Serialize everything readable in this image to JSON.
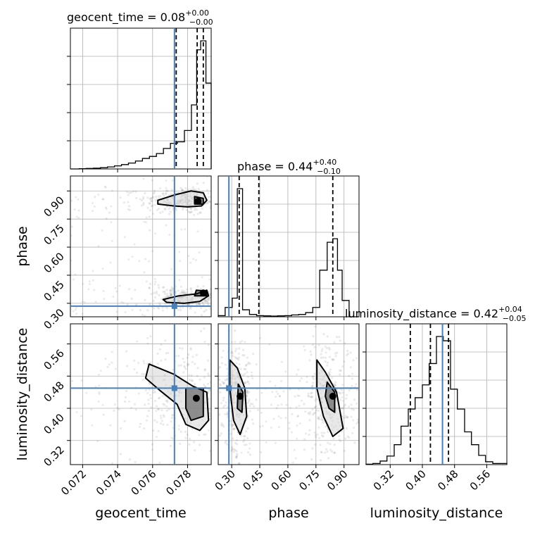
{
  "chart_data": {
    "type": "corner",
    "parameters": [
      {
        "name": "geocent_time",
        "axis_label": "geocent_time",
        "range": [
          0.0713,
          0.07935
        ],
        "ticks": [
          0.072,
          0.074,
          0.076,
          0.078
        ],
        "tick_labels": [
          "0.072",
          "0.074",
          "0.076",
          "0.078"
        ],
        "truth": 0.07725,
        "quantiles": [
          0.07735,
          0.07855,
          0.0789
        ],
        "title_prefix": "geocent_time = ",
        "title_value": "0.08",
        "title_plus": "+0.00",
        "title_minus": "−0.00",
        "hist_bin_edges": [
          0.0713,
          0.0718,
          0.0722,
          0.07262,
          0.07302,
          0.07342,
          0.07382,
          0.07422,
          0.07462,
          0.07502,
          0.07542,
          0.07582,
          0.07622,
          0.07662,
          0.07702,
          0.07742,
          0.07782,
          0.07822,
          0.07852,
          0.07875,
          0.07905,
          0.07935
        ],
        "hist_counts": [
          0,
          1,
          2,
          3,
          5,
          8,
          12,
          17,
          23,
          31,
          41,
          49,
          60,
          80,
          100,
          106,
          150,
          250,
          465,
          500,
          335
        ]
      },
      {
        "name": "phase",
        "axis_label": "phase",
        "range": [
          0.228,
          0.98
        ],
        "ticks": [
          0.3,
          0.45,
          0.6,
          0.75,
          0.9
        ],
        "tick_labels": [
          "0.30",
          "0.45",
          "0.60",
          "0.75",
          "0.90"
        ],
        "truth": 0.285,
        "quantiles": [
          0.34,
          0.445,
          0.84
        ],
        "title_prefix": "phase = ",
        "title_value": "0.44",
        "title_plus": "+0.40",
        "title_minus": "−0.10",
        "hist_bin_edges": [
          0.228,
          0.265,
          0.303,
          0.33,
          0.358,
          0.395,
          0.433,
          0.47,
          0.508,
          0.545,
          0.583,
          0.62,
          0.658,
          0.695,
          0.733,
          0.77,
          0.81,
          0.84,
          0.865,
          0.89,
          0.927,
          0.98
        ],
        "hist_counts": [
          5,
          40,
          80,
          550,
          30,
          10,
          5,
          4,
          3,
          4,
          5,
          8,
          10,
          18,
          40,
          200,
          320,
          335,
          200,
          70,
          0
        ]
      },
      {
        "name": "luminosity_distance",
        "axis_label": "luminosity_distance",
        "range": [
          0.26,
          0.61
        ],
        "ticks": [
          0.32,
          0.4,
          0.48,
          0.56
        ],
        "tick_labels": [
          "0.32",
          "0.40",
          "0.48",
          "0.56"
        ],
        "truth": 0.45,
        "quantiles": [
          0.37,
          0.42,
          0.465
        ],
        "title_prefix": "luminosity_distance = ",
        "title_value": "0.42",
        "title_plus": "+0.04",
        "title_minus": "−0.05",
        "hist_bin_edges": [
          0.26,
          0.277,
          0.295,
          0.312,
          0.33,
          0.347,
          0.365,
          0.382,
          0.4,
          0.417,
          0.435,
          0.452,
          0.47,
          0.487,
          0.505,
          0.522,
          0.54,
          0.557,
          0.575,
          0.61
        ],
        "hist_counts": [
          3,
          8,
          25,
          60,
          140,
          270,
          390,
          470,
          560,
          710,
          900,
          870,
          530,
          390,
          230,
          140,
          65,
          20,
          8
        ]
      }
    ],
    "pairs": [
      {
        "x": "geocent_time",
        "y": "phase",
        "contours": [
          [
            [
              0.0763,
              0.85
            ],
            [
              0.0773,
              0.88
            ],
            [
              0.0782,
              0.9
            ],
            [
              0.0789,
              0.89
            ],
            [
              0.0791,
              0.85
            ],
            [
              0.0788,
              0.82
            ],
            [
              0.078,
              0.815
            ],
            [
              0.0772,
              0.82
            ],
            [
              0.0763,
              0.83
            ]
          ],
          [
            [
              0.0784,
              0.87
            ],
            [
              0.0789,
              0.86
            ],
            [
              0.0789,
              0.83
            ],
            [
              0.0784,
              0.83
            ]
          ],
          [
            [
              0.0766,
              0.32
            ],
            [
              0.0775,
              0.34
            ],
            [
              0.0785,
              0.35
            ],
            [
              0.0791,
              0.37
            ],
            [
              0.0792,
              0.34
            ],
            [
              0.0787,
              0.31
            ],
            [
              0.0778,
              0.3
            ],
            [
              0.0768,
              0.305
            ]
          ],
          [
            [
              0.0785,
              0.37
            ],
            [
              0.0791,
              0.365
            ],
            [
              0.0791,
              0.34
            ],
            [
              0.0784,
              0.34
            ]
          ]
        ],
        "dense_cores": [
          [
            0.0786,
            0.845
          ],
          [
            0.0789,
            0.355
          ]
        ]
      },
      {
        "x": "geocent_time",
        "y": "luminosity_distance",
        "contours": [
          [
            [
              0.0758,
              0.51
            ],
            [
              0.0772,
              0.485
            ],
            [
              0.0783,
              0.455
            ],
            [
              0.0791,
              0.44
            ],
            [
              0.0792,
              0.37
            ],
            [
              0.0787,
              0.345
            ],
            [
              0.0779,
              0.36
            ],
            [
              0.0774,
              0.41
            ],
            [
              0.0764,
              0.445
            ],
            [
              0.0756,
              0.475
            ]
          ],
          [
            [
              0.0779,
              0.45
            ],
            [
              0.0789,
              0.45
            ],
            [
              0.0789,
              0.38
            ],
            [
              0.0782,
              0.37
            ],
            [
              0.0779,
              0.4
            ]
          ]
        ],
        "dense_cores": [
          [
            0.0785,
            0.425
          ]
        ]
      },
      {
        "x": "phase",
        "y": "luminosity_distance",
        "contours": [
          [
            [
              0.29,
              0.52
            ],
            [
              0.33,
              0.5
            ],
            [
              0.37,
              0.45
            ],
            [
              0.38,
              0.38
            ],
            [
              0.345,
              0.335
            ],
            [
              0.31,
              0.37
            ],
            [
              0.29,
              0.45
            ]
          ],
          [
            [
              0.335,
              0.46
            ],
            [
              0.36,
              0.44
            ],
            [
              0.355,
              0.39
            ],
            [
              0.33,
              0.4
            ]
          ],
          [
            [
              0.755,
              0.52
            ],
            [
              0.8,
              0.49
            ],
            [
              0.86,
              0.44
            ],
            [
              0.895,
              0.35
            ],
            [
              0.84,
              0.33
            ],
            [
              0.79,
              0.38
            ],
            [
              0.755,
              0.45
            ]
          ],
          [
            [
              0.81,
              0.465
            ],
            [
              0.85,
              0.44
            ],
            [
              0.85,
              0.39
            ],
            [
              0.82,
              0.4
            ],
            [
              0.8,
              0.43
            ]
          ]
        ],
        "dense_cores": [
          [
            0.345,
            0.43
          ],
          [
            0.84,
            0.43
          ]
        ]
      }
    ],
    "grid": true,
    "colors": {
      "truth": "#4a80b8",
      "contour": "#000000",
      "samples": "#555555"
    }
  }
}
